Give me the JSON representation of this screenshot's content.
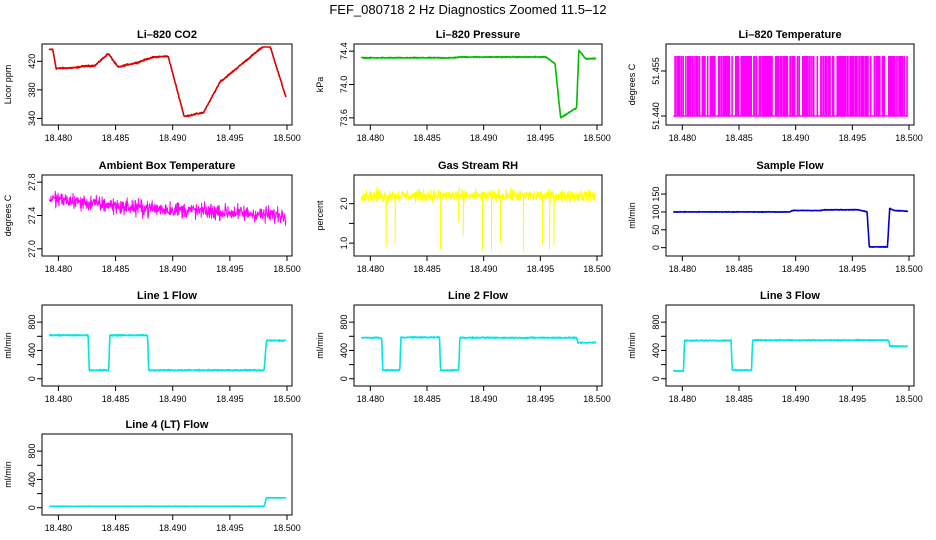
{
  "title": "FEF_080718  2 Hz Diagnostics Zoomed 11.5–12",
  "chart_data": [
    {
      "type": "line",
      "title": "Li–820 CO2",
      "ylabel": "Licor ppm",
      "color": "#dd0000",
      "xlim": [
        18.479,
        18.5
      ],
      "xticks": [
        18.48,
        18.485,
        18.49,
        18.495,
        18.5
      ],
      "ylim": [
        335,
        440
      ],
      "yticks": [
        340,
        380,
        420
      ],
      "ytick_labels": [
        "340",
        "380",
        "420"
      ],
      "x": [
        18.4792,
        18.4795,
        18.4798,
        18.4815,
        18.4821,
        18.4822,
        18.4831,
        18.4832,
        18.4843,
        18.4844,
        18.4852,
        18.4853,
        18.4862,
        18.4863,
        18.4868,
        18.4869,
        18.4879,
        18.488,
        18.4884,
        18.4885,
        18.4895,
        18.4896,
        18.491,
        18.4911,
        18.4926,
        18.4927,
        18.4942,
        18.4943,
        18.498,
        18.4985,
        18.4999
      ],
      "y": [
        436,
        437,
        410,
        411,
        413,
        413,
        414,
        414,
        430,
        430,
        412,
        412,
        416,
        416,
        418,
        418,
        424,
        424,
        426,
        426,
        427,
        427,
        343,
        343,
        348,
        348,
        393,
        393,
        442,
        442,
        370
      ],
      "noise": 1.5
    },
    {
      "type": "line",
      "title": "Li–820 Pressure",
      "ylabel": "kPa",
      "color": "#00bb00",
      "xlim": [
        18.479,
        18.5
      ],
      "xticks": [
        18.48,
        18.485,
        18.49,
        18.495,
        18.5
      ],
      "ylim": [
        73.55,
        74.45
      ],
      "yticks": [
        73.6,
        74.0,
        74.4
      ],
      "ytick_labels": [
        "73.6",
        "74.0",
        "74.4"
      ],
      "x": [
        18.4792,
        18.4872,
        18.488,
        18.49,
        18.4955,
        18.4963,
        18.4966,
        18.4968,
        18.4982,
        18.4984,
        18.499,
        18.4999
      ],
      "y": [
        74.32,
        74.32,
        74.33,
        74.33,
        74.33,
        74.25,
        73.85,
        73.6,
        73.72,
        74.41,
        74.31,
        74.31
      ],
      "noise": 0.008
    },
    {
      "type": "spikes",
      "title": "Li–820 Temperature",
      "ylabel": "degrees C",
      "color": "#ff00ff",
      "xlim": [
        18.479,
        18.5
      ],
      "xticks": [
        18.48,
        18.485,
        18.49,
        18.495,
        18.5
      ],
      "ylim": [
        51.438,
        51.463
      ],
      "yticks": [
        51.44,
        51.455
      ],
      "ytick_labels": [
        "51.440",
        "51.455"
      ],
      "baseline": 51.44,
      "high": 51.46,
      "density": 0.6
    },
    {
      "type": "noise",
      "title": "Ambient Box Temperature",
      "ylabel": "degrees C",
      "color": "#ff00ff",
      "xlim": [
        18.479,
        18.5
      ],
      "xticks": [
        18.48,
        18.485,
        18.49,
        18.495,
        18.5
      ],
      "ylim": [
        26.95,
        27.85
      ],
      "yticks": [
        27.0,
        27.4,
        27.8
      ],
      "ytick_labels": [
        "27.0",
        "27.4",
        "27.8"
      ],
      "x": [
        18.4792,
        18.486,
        18.4999
      ],
      "y": [
        27.6,
        27.5,
        27.4
      ],
      "noise": 0.14
    },
    {
      "type": "noise",
      "title": "Gas Stream RH",
      "ylabel": "percent",
      "color": "#ffff00",
      "xlim": [
        18.479,
        18.5
      ],
      "xticks": [
        18.48,
        18.485,
        18.49,
        18.495,
        18.5
      ],
      "ylim": [
        0.75,
        2.65
      ],
      "yticks": [
        1.0,
        1.5,
        2.0
      ],
      "ytick_labels": [
        "1.0",
        "",
        "2.0"
      ],
      "x": [
        18.4792,
        18.4999
      ],
      "y": [
        2.2,
        2.2
      ],
      "noise": 0.22,
      "dips_x": [
        18.4814,
        18.4822,
        18.4862,
        18.4878,
        18.4882,
        18.4899,
        18.4907,
        18.4915,
        18.4935,
        18.4952,
        18.4958,
        18.4962
      ],
      "dips_y": [
        0.9,
        0.98,
        0.85,
        1.55,
        1.2,
        0.82,
        0.8,
        1.02,
        0.8,
        0.98,
        0.85,
        0.95
      ]
    },
    {
      "type": "line",
      "title": "Sample Flow",
      "ylabel": "ml/min",
      "color": "#0000cc",
      "xlim": [
        18.479,
        18.5
      ],
      "xticks": [
        18.48,
        18.485,
        18.49,
        18.495,
        18.5
      ],
      "ylim": [
        -15,
        195
      ],
      "yticks": [
        0,
        50,
        100,
        150
      ],
      "ytick_labels": [
        "0",
        "50",
        "100",
        "150"
      ],
      "x": [
        18.4792,
        18.4895,
        18.4897,
        18.4922,
        18.4925,
        18.4955,
        18.4963,
        18.4965,
        18.4981,
        18.4983,
        18.4987,
        18.4999
      ],
      "y": [
        100,
        100,
        104,
        104,
        106,
        106,
        100,
        2,
        2,
        110,
        104,
        102
      ],
      "noise": 1.2
    },
    {
      "type": "line",
      "title": "Line 1 Flow",
      "ylabel": "ml/min",
      "color": "#00e5e5",
      "xlim": [
        18.479,
        18.5
      ],
      "xticks": [
        18.48,
        18.485,
        18.49,
        18.495,
        18.5
      ],
      "ylim": [
        -60,
        1000
      ],
      "yticks": [
        0,
        200,
        400,
        600,
        800
      ],
      "ytick_labels": [
        "0",
        "",
        "400",
        "",
        "800"
      ],
      "x": [
        18.4792,
        18.4826,
        18.4827,
        18.4844,
        18.4845,
        18.4878,
        18.4879,
        18.498,
        18.4982,
        18.4999
      ],
      "y": [
        615,
        615,
        120,
        120,
        615,
        615,
        120,
        120,
        540,
        540
      ],
      "noise": 14
    },
    {
      "type": "line",
      "title": "Line 2 Flow",
      "ylabel": "ml/min",
      "color": "#00e5e5",
      "xlim": [
        18.479,
        18.5
      ],
      "xticks": [
        18.48,
        18.485,
        18.49,
        18.495,
        18.5
      ],
      "ylim": [
        -60,
        1000
      ],
      "yticks": [
        0,
        200,
        400,
        600,
        800
      ],
      "ytick_labels": [
        "0",
        "",
        "400",
        "",
        "800"
      ],
      "x": [
        18.4792,
        18.481,
        18.4811,
        18.4826,
        18.4827,
        18.4861,
        18.4862,
        18.4878,
        18.4879,
        18.4982,
        18.4983,
        18.4999
      ],
      "y": [
        580,
        580,
        120,
        120,
        585,
        585,
        120,
        120,
        580,
        580,
        510,
        510
      ],
      "noise": 12
    },
    {
      "type": "line",
      "title": "Line 3 Flow",
      "ylabel": "ml/min",
      "color": "#00e5e5",
      "xlim": [
        18.479,
        18.5
      ],
      "xticks": [
        18.48,
        18.485,
        18.49,
        18.495,
        18.5
      ],
      "ylim": [
        -60,
        1000
      ],
      "yticks": [
        0,
        200,
        400,
        600,
        800
      ],
      "ytick_labels": [
        "0",
        "",
        "400",
        "",
        "800"
      ],
      "x": [
        18.4792,
        18.4801,
        18.4802,
        18.4843,
        18.4844,
        18.4861,
        18.4862,
        18.4982,
        18.4983,
        18.4999
      ],
      "y": [
        110,
        110,
        540,
        540,
        120,
        120,
        545,
        545,
        460,
        460
      ],
      "noise": 12
    },
    {
      "type": "line",
      "title": "Line 4 (LT) Flow",
      "ylabel": "ml/min",
      "color": "#00e5e5",
      "xlim": [
        18.479,
        18.5
      ],
      "xticks": [
        18.48,
        18.485,
        18.49,
        18.495,
        18.5
      ],
      "ylim": [
        -60,
        1000
      ],
      "yticks": [
        0,
        200,
        400,
        600,
        800
      ],
      "ytick_labels": [
        "0",
        "",
        "400",
        "",
        "800"
      ],
      "x": [
        18.4792,
        18.498,
        18.4982,
        18.4999
      ],
      "y": [
        20,
        20,
        140,
        140
      ],
      "noise": 5
    }
  ]
}
